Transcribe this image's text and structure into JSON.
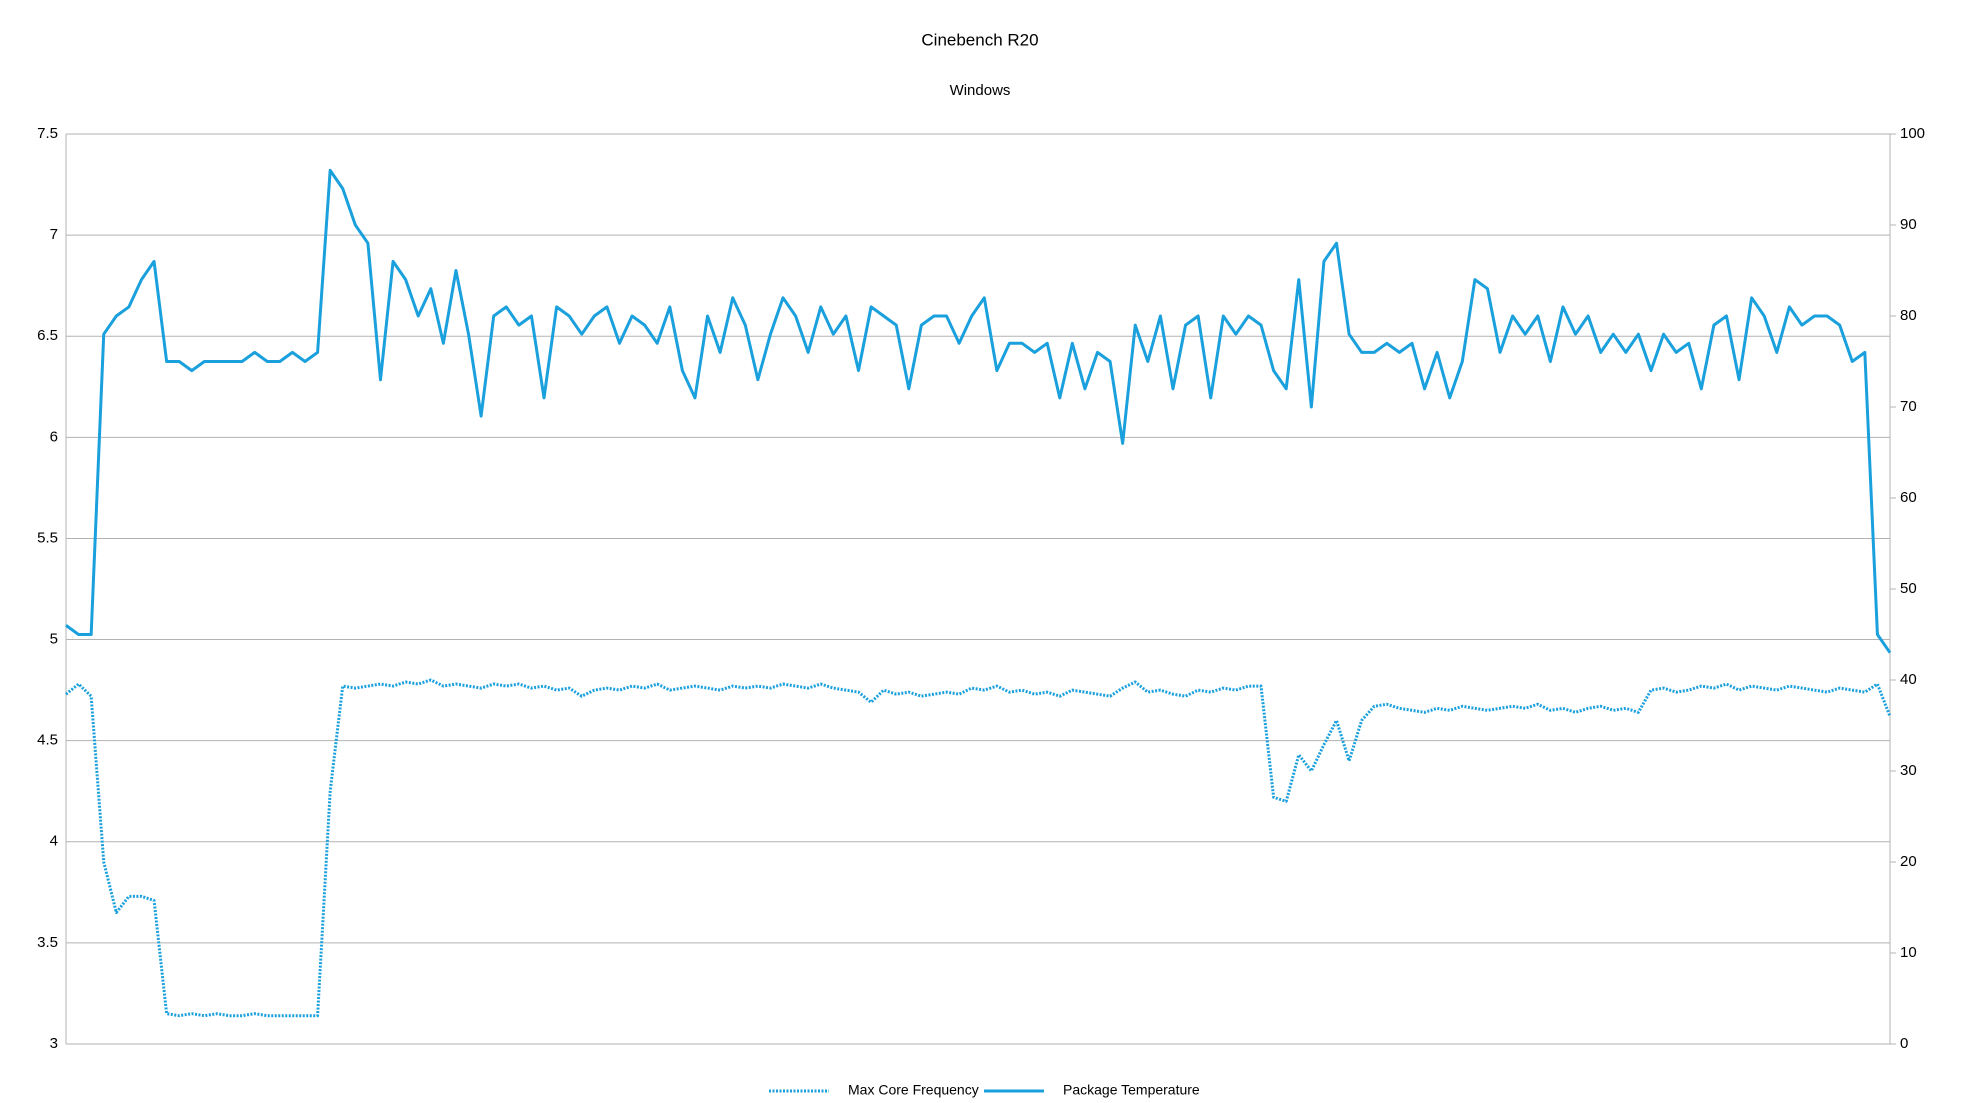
{
  "chart_data": {
    "type": "line",
    "title": "Cinebench R20",
    "subtitle": "Windows",
    "ylim": [
      3,
      7.5
    ],
    "yticks": [
      3,
      3.5,
      4,
      4.5,
      5,
      5.5,
      6,
      6.5,
      7,
      7.5
    ],
    "y2lim": [
      0,
      100
    ],
    "y2ticks": [
      0,
      10,
      20,
      30,
      40,
      50,
      60,
      70,
      80,
      90,
      100
    ],
    "grid": true,
    "legend": "bottom",
    "series": [
      {
        "name": "Max Core Frequency",
        "color": "#1aa0dd",
        "style": "dotted",
        "axis": "y",
        "values": [
          4.73,
          4.78,
          4.72,
          3.9,
          3.65,
          3.73,
          3.73,
          3.71,
          3.15,
          3.14,
          3.15,
          3.14,
          3.15,
          3.14,
          3.14,
          3.15,
          3.14,
          3.14,
          3.14,
          3.14,
          3.14,
          4.25,
          4.77,
          4.76,
          4.77,
          4.78,
          4.77,
          4.79,
          4.78,
          4.8,
          4.77,
          4.78,
          4.77,
          4.76,
          4.78,
          4.77,
          4.78,
          4.76,
          4.77,
          4.75,
          4.76,
          4.72,
          4.75,
          4.76,
          4.75,
          4.77,
          4.76,
          4.78,
          4.75,
          4.76,
          4.77,
          4.76,
          4.75,
          4.77,
          4.76,
          4.77,
          4.76,
          4.78,
          4.77,
          4.76,
          4.78,
          4.76,
          4.75,
          4.74,
          4.69,
          4.75,
          4.73,
          4.74,
          4.72,
          4.73,
          4.74,
          4.73,
          4.76,
          4.75,
          4.77,
          4.74,
          4.75,
          4.73,
          4.74,
          4.72,
          4.75,
          4.74,
          4.73,
          4.72,
          4.76,
          4.79,
          4.74,
          4.75,
          4.73,
          4.72,
          4.75,
          4.74,
          4.76,
          4.75,
          4.77,
          4.77,
          4.22,
          4.2,
          4.43,
          4.35,
          4.48,
          4.6,
          4.4,
          4.6,
          4.67,
          4.68,
          4.66,
          4.65,
          4.64,
          4.66,
          4.65,
          4.67,
          4.66,
          4.65,
          4.66,
          4.67,
          4.66,
          4.68,
          4.65,
          4.66,
          4.64,
          4.66,
          4.67,
          4.65,
          4.66,
          4.64,
          4.75,
          4.76,
          4.74,
          4.75,
          4.77,
          4.76,
          4.78,
          4.75,
          4.77,
          4.76,
          4.75,
          4.77,
          4.76,
          4.75,
          4.74,
          4.76,
          4.75,
          4.74,
          4.78,
          4.62
        ]
      },
      {
        "name": "Package Temperature",
        "color": "#1aa0dd",
        "style": "solid",
        "axis": "y2",
        "values": [
          46,
          45,
          45,
          78,
          80,
          81,
          84,
          86,
          75,
          75,
          74,
          75,
          75,
          75,
          75,
          76,
          75,
          75,
          76,
          75,
          76,
          96,
          94,
          90,
          88,
          73,
          86,
          84,
          80,
          83,
          77,
          85,
          78,
          69,
          80,
          81,
          79,
          80,
          71,
          81,
          80,
          78,
          80,
          81,
          77,
          80,
          79,
          77,
          81,
          74,
          71,
          80,
          76,
          82,
          79,
          73,
          78,
          82,
          80,
          76,
          81,
          78,
          80,
          74,
          81,
          80,
          79,
          72,
          79,
          80,
          80,
          77,
          80,
          82,
          74,
          77,
          77,
          76,
          77,
          71,
          77,
          72,
          76,
          75,
          66,
          79,
          75,
          80,
          72,
          79,
          80,
          71,
          80,
          78,
          80,
          79,
          74,
          72,
          84,
          70,
          86,
          88,
          78,
          76,
          76,
          77,
          76,
          77,
          72,
          76,
          71,
          75,
          84,
          83,
          76,
          80,
          78,
          80,
          75,
          81,
          78,
          80,
          76,
          78,
          76,
          78,
          74,
          78,
          76,
          77,
          72,
          79,
          80,
          73,
          82,
          80,
          76,
          81,
          79,
          80,
          80,
          79,
          75,
          76,
          45,
          43
        ]
      }
    ]
  }
}
